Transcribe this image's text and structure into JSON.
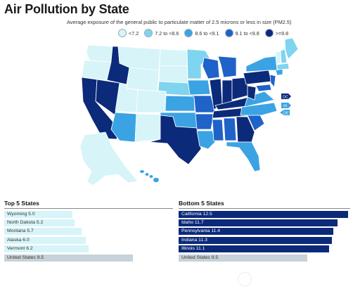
{
  "title": "Air Pollution by State",
  "subtitle": "Average exposure of the general public to particulate matter of 2.5 microns or less in size (PM2.5)",
  "colors": {
    "lt7_2": "#d7f4f8",
    "b7_2_8_6": "#7fd4ef",
    "b8_6_9_1": "#3ba3e3",
    "b9_1_9_8": "#1f62c8",
    "ge9_8": "#0c2a7a",
    "us_bar": "#c8d2d8",
    "state_border": "#ffffff"
  },
  "legend": [
    {
      "label": "<7.2",
      "color": "#d7f4f8"
    },
    {
      "label": "7.2 to <8.6",
      "color": "#7fd4ef"
    },
    {
      "label": "8.6 to <9.1",
      "color": "#3ba3e3"
    },
    {
      "label": "9.1 to <9.8",
      "color": "#1f62c8"
    },
    {
      "label": ">=9.8",
      "color": "#0c2a7a"
    }
  ],
  "map_labels": {
    "dc": "DC",
    "ri": "RI",
    "de": "DE"
  },
  "chart_data": [
    {
      "type": "bar",
      "title": "Top 5 States",
      "categories": [
        "Wyoming",
        "North Dakota",
        "Montana",
        "Alaska",
        "Vermont",
        "United States"
      ],
      "values": [
        5.0,
        5.2,
        5.7,
        6.0,
        6.2,
        9.5
      ],
      "labels": [
        "Wyoming 5.0",
        "North Dakota 5.2",
        "Montana 5.7",
        "Alaska 6.0",
        "Vermont 6.2",
        "United States 9.5"
      ]
    },
    {
      "type": "bar",
      "title": "Bottom 5 States",
      "categories": [
        "California",
        "Idaho",
        "Pennsylvania",
        "Indiana",
        "Illinois",
        "United States"
      ],
      "values": [
        12.5,
        11.7,
        11.4,
        11.3,
        11.1,
        9.5
      ],
      "labels": [
        "California 12.5",
        "Idaho 11.7",
        "Pennsylvania 11.4",
        "Indiana 11.3",
        "Illinois 11.1",
        "United States 9.5"
      ]
    }
  ]
}
